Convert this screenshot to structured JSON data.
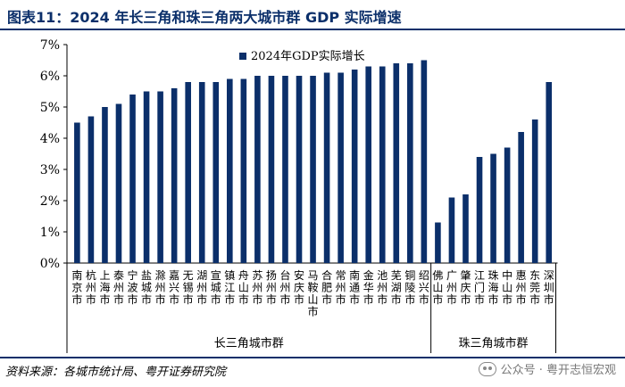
{
  "header": {
    "title": "图表11：2024 年长三角和珠三角两大城市群 GDP 实际增速"
  },
  "footer": {
    "source": "资料来源：各城市统计局、粤开证券研究院",
    "watermark": "公众号 · 粤开志恒宏观"
  },
  "chart_data": {
    "type": "bar",
    "categories": [
      "南京市",
      "杭州市",
      "上海市",
      "泰州市",
      "宁波市",
      "盐城市",
      "滁州市",
      "嘉兴市",
      "无锡市",
      "湖州市",
      "宣城市",
      "镇江市",
      "舟山市",
      "苏州市",
      "扬州市",
      "台州市",
      "安庆市",
      "马鞍山市",
      "合肥市",
      "常州市",
      "南通市",
      "金华市",
      "池州市",
      "芜湖市",
      "铜陵市",
      "绍兴市",
      "佛山市",
      "广州市",
      "肇庆市",
      "江门市",
      "珠海市",
      "中山市",
      "惠州市",
      "东莞市",
      "深圳市"
    ],
    "series": [
      {
        "name": "2024年GDP实际增长",
        "values": [
          4.5,
          4.7,
          5.0,
          5.1,
          5.4,
          5.5,
          5.5,
          5.6,
          5.8,
          5.8,
          5.8,
          5.9,
          5.9,
          6.0,
          6.0,
          6.0,
          6.0,
          6.0,
          6.1,
          6.1,
          6.2,
          6.3,
          6.3,
          6.4,
          6.4,
          6.5,
          1.3,
          2.1,
          2.2,
          3.4,
          3.5,
          3.7,
          4.2,
          4.6,
          5.8
        ]
      }
    ],
    "groups": [
      {
        "label": "长三角城市群",
        "count": 26
      },
      {
        "label": "珠三角城市群",
        "count": 9
      }
    ],
    "yticks": [
      "0%",
      "1%",
      "2%",
      "3%",
      "4%",
      "5%",
      "6%",
      "7%"
    ],
    "ylim": [
      0,
      7
    ],
    "bar_color": "#0b2f6a",
    "legend_position": "top-center",
    "grid": false
  }
}
